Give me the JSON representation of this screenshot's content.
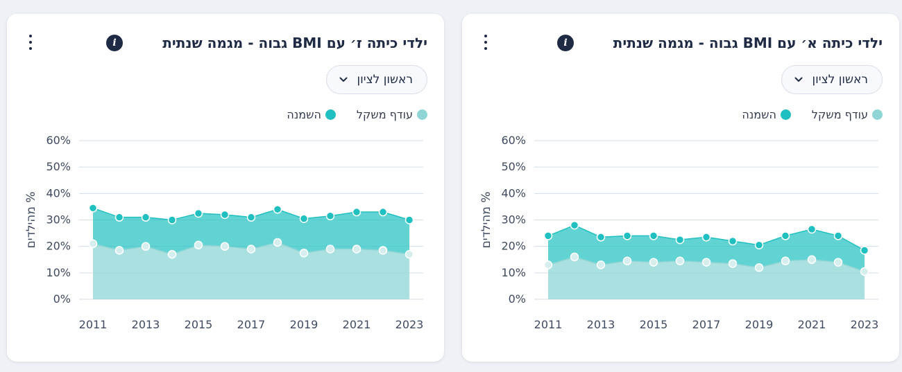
{
  "colors": {
    "overweight": "#8fd5d5",
    "overweight_point": "#d6eeee",
    "obesity": "#20c0c0",
    "grid": "#d3dde9",
    "axis_text": "#3e4a60"
  },
  "icons": {
    "info": "info-icon",
    "menu": "more-vertical-icon",
    "chevron": "chevron-down-icon"
  },
  "cards": [
    {
      "title": "ילדי כיתה ז׳ עם BMI גבוה - מגמה שנתית",
      "info_glyph": "i",
      "dropdown_label": "ראשון לציון",
      "legend": [
        "עודף משקל",
        "השמנה"
      ]
    },
    {
      "title": "ילדי כיתה א׳ עם BMI גבוה - מגמה שנתית",
      "info_glyph": "i",
      "dropdown_label": "ראשון לציון",
      "legend": [
        "עודף משקל",
        "השמנה"
      ]
    }
  ],
  "chart_data": [
    {
      "type": "area",
      "title": "ילדי כיתה ז׳ עם BMI גבוה - מגמה שנתית",
      "xlabel": "",
      "ylabel": "% מהילדים",
      "x": [
        2011,
        2012,
        2013,
        2014,
        2015,
        2016,
        2017,
        2018,
        2019,
        2020,
        2021,
        2022,
        2023
      ],
      "x_ticks": [
        "2011",
        "2013",
        "2015",
        "2017",
        "2019",
        "2021",
        "2023"
      ],
      "y_ticks": [
        "0%",
        "10%",
        "20%",
        "30%",
        "40%",
        "50%",
        "60%"
      ],
      "ylim": [
        0,
        60
      ],
      "grid": true,
      "legend_position": "top-right",
      "series": [
        {
          "name": "עודף משקל",
          "values": [
            21,
            18.5,
            20,
            17,
            20.5,
            20,
            19,
            21.5,
            17.5,
            19,
            19,
            18.5,
            17
          ]
        },
        {
          "name": "השמנה",
          "values": [
            34.5,
            31,
            31,
            30,
            32.5,
            32,
            31,
            34,
            30.5,
            31.5,
            33,
            33,
            30
          ]
        }
      ]
    },
    {
      "type": "area",
      "title": "ילדי כיתה א׳ עם BMI גבוה - מגמה שנתית",
      "xlabel": "",
      "ylabel": "% מהילדים",
      "x": [
        2011,
        2012,
        2013,
        2014,
        2015,
        2016,
        2017,
        2018,
        2019,
        2020,
        2021,
        2022,
        2023
      ],
      "x_ticks": [
        "2011",
        "2013",
        "2015",
        "2017",
        "2019",
        "2021",
        "2023"
      ],
      "y_ticks": [
        "0%",
        "10%",
        "20%",
        "30%",
        "40%",
        "50%",
        "60%"
      ],
      "ylim": [
        0,
        60
      ],
      "grid": true,
      "legend_position": "top-right",
      "series": [
        {
          "name": "עודף משקל",
          "values": [
            13,
            16,
            13,
            14.5,
            14,
            14.5,
            14,
            13.5,
            12,
            14.5,
            15,
            14,
            10.5
          ]
        },
        {
          "name": "השמנה",
          "values": [
            24,
            28,
            23.5,
            24,
            24,
            22.5,
            23.5,
            22,
            20.5,
            24,
            26.5,
            24,
            18.5
          ]
        }
      ]
    }
  ]
}
